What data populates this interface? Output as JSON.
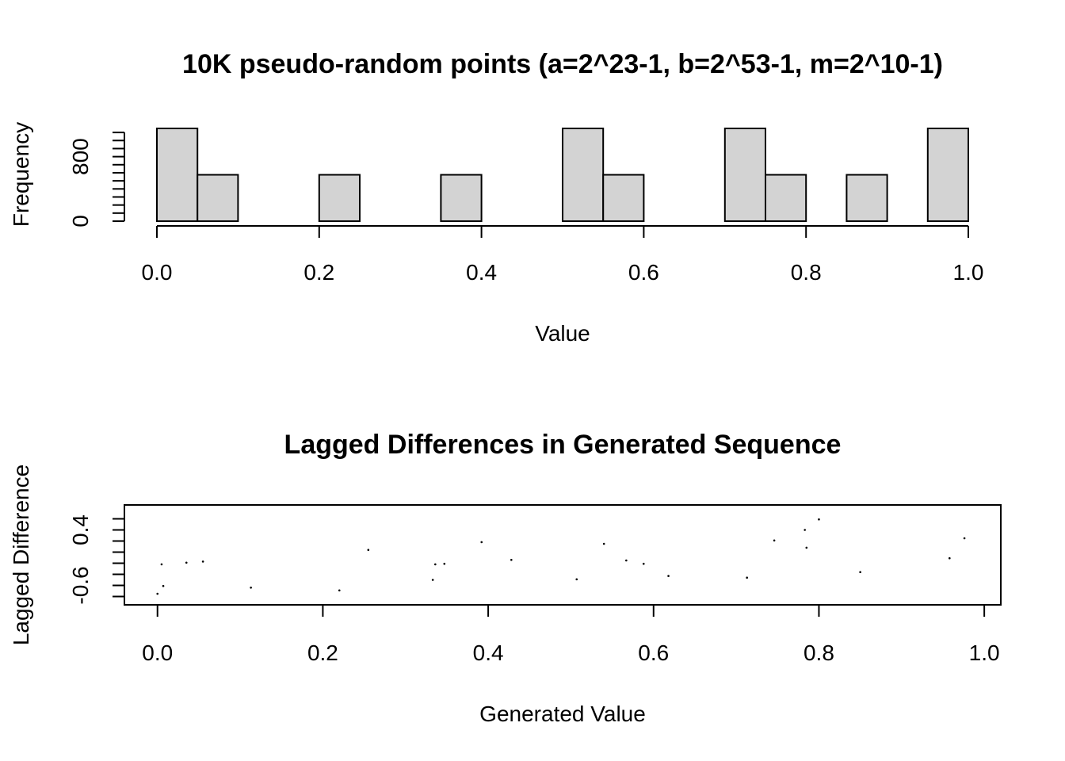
{
  "chart_data": [
    {
      "type": "bar",
      "title": "10K pseudo-random points (a=2^23-1, b=2^53-1, m=2^10-1)",
      "xlabel": "Value",
      "ylabel": "Frequency",
      "xlim": [
        0,
        1
      ],
      "ylim": [
        0,
        1150
      ],
      "x_ticks": [
        "0.0",
        "0.2",
        "0.4",
        "0.6",
        "0.8",
        "1.0"
      ],
      "y_ticks": [
        "0",
        "800"
      ],
      "bin_width": 0.05,
      "bins": [
        {
          "start": 0.0,
          "count": 1150
        },
        {
          "start": 0.05,
          "count": 575
        },
        {
          "start": 0.1,
          "count": 0
        },
        {
          "start": 0.15,
          "count": 0
        },
        {
          "start": 0.2,
          "count": 575
        },
        {
          "start": 0.25,
          "count": 0
        },
        {
          "start": 0.3,
          "count": 0
        },
        {
          "start": 0.35,
          "count": 575
        },
        {
          "start": 0.4,
          "count": 0
        },
        {
          "start": 0.45,
          "count": 0
        },
        {
          "start": 0.5,
          "count": 1150
        },
        {
          "start": 0.55,
          "count": 575
        },
        {
          "start": 0.6,
          "count": 0
        },
        {
          "start": 0.65,
          "count": 0
        },
        {
          "start": 0.7,
          "count": 1150
        },
        {
          "start": 0.75,
          "count": 575
        },
        {
          "start": 0.8,
          "count": 0
        },
        {
          "start": 0.85,
          "count": 575
        },
        {
          "start": 0.9,
          "count": 0
        },
        {
          "start": 0.95,
          "count": 1150
        }
      ]
    },
    {
      "type": "scatter",
      "title": "Lagged Differences in Generated Sequence",
      "xlabel": "Generated Value",
      "ylabel": "Lagged Difference",
      "xlim": [
        -0.04,
        1.02
      ],
      "ylim": [
        -0.95,
        0.85
      ],
      "x_ticks": [
        "0.0",
        "0.2",
        "0.4",
        "0.6",
        "0.8",
        "1.0"
      ],
      "y_ticks": [
        "-0.6",
        "0.4"
      ],
      "points": [
        {
          "x": 0.0,
          "y": -0.75
        },
        {
          "x": 0.005,
          "y": -0.22
        },
        {
          "x": 0.007,
          "y": -0.61
        },
        {
          "x": 0.035,
          "y": -0.19
        },
        {
          "x": 0.055,
          "y": -0.17
        },
        {
          "x": 0.113,
          "y": -0.64
        },
        {
          "x": 0.22,
          "y": -0.69
        },
        {
          "x": 0.255,
          "y": 0.04
        },
        {
          "x": 0.333,
          "y": -0.5
        },
        {
          "x": 0.336,
          "y": -0.22
        },
        {
          "x": 0.347,
          "y": -0.21
        },
        {
          "x": 0.392,
          "y": 0.18
        },
        {
          "x": 0.428,
          "y": -0.14
        },
        {
          "x": 0.507,
          "y": -0.49
        },
        {
          "x": 0.54,
          "y": 0.15
        },
        {
          "x": 0.567,
          "y": -0.15
        },
        {
          "x": 0.588,
          "y": -0.21
        },
        {
          "x": 0.618,
          "y": -0.43
        },
        {
          "x": 0.713,
          "y": -0.46
        },
        {
          "x": 0.746,
          "y": 0.21
        },
        {
          "x": 0.783,
          "y": 0.4
        },
        {
          "x": 0.785,
          "y": 0.08
        },
        {
          "x": 0.8,
          "y": 0.59
        },
        {
          "x": 0.85,
          "y": -0.36
        },
        {
          "x": 0.958,
          "y": -0.11
        },
        {
          "x": 0.976,
          "y": 0.25
        }
      ]
    }
  ]
}
